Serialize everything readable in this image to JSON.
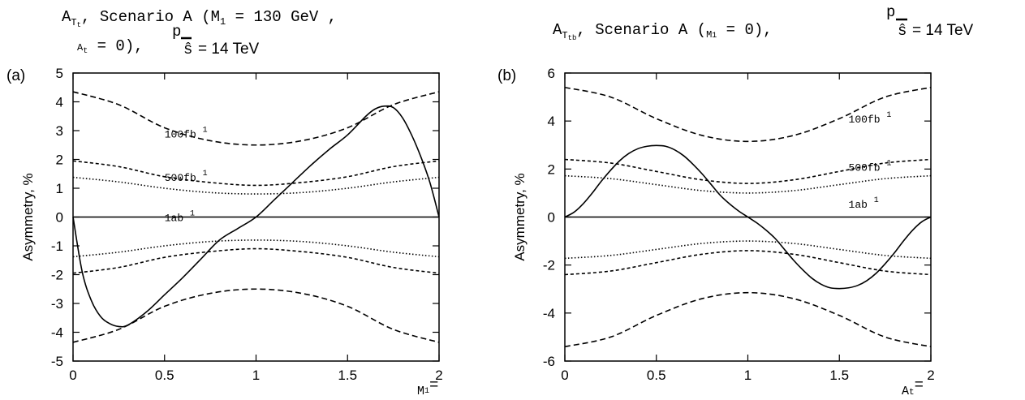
{
  "figure": {
    "panels": [
      {
        "tag": "(a)",
        "title_line1": "A",
        "title_sub1": "T",
        "title_subsub1": "t",
        "title_line1_rest": ", Scenario A (M",
        "title_m_sub": "1",
        "title_line1_tail": " = 130 GeV ,",
        "title_line2_a": "A",
        "title_line2_sub": "t",
        "title_line2_rest": " = 0),",
        "title_sqrt_p": "p",
        "title_sqrt_s": "ŝ",
        "title_energy": "= 14 TeV",
        "xaxis_name": "M",
        "xaxis_sub": "1",
        "xaxis_eq": "="
      },
      {
        "tag": "(b)",
        "title_line1": "A",
        "title_sub1": "T",
        "title_subsub1": "tb",
        "title_line1_rest": ", Scenario A (",
        "title_m_label": "M",
        "title_m_sub": "1",
        "title_line1_tail": " = 0),",
        "title_sqrt_p": "p",
        "title_sqrt_s": "ŝ",
        "title_energy": "= 14 TeV",
        "xaxis_name": "A",
        "xaxis_sub": "t",
        "xaxis_eq": "="
      }
    ]
  },
  "chart_data": [
    {
      "type": "line",
      "panel": "(a)",
      "ylabel": "Asymmetry, %",
      "xlim": [
        0,
        2
      ],
      "ylim": [
        -5,
        5
      ],
      "xticks": [
        "0",
        "0.5",
        "1",
        "1.5",
        "2"
      ],
      "yticks": [
        "-5",
        "-4",
        "-3",
        "-2",
        "-1",
        "0",
        "1",
        "2",
        "3",
        "4",
        "5"
      ],
      "xtick_values": [
        0,
        0.5,
        1,
        1.5,
        2
      ],
      "ytick_values": [
        -5,
        -4,
        -3,
        -2,
        -1,
        0,
        1,
        2,
        3,
        4,
        5
      ],
      "grid": false,
      "series": [
        {
          "style": "solid",
          "x": [
            0,
            0.05,
            0.1,
            0.15,
            0.2,
            0.25,
            0.3,
            0.4,
            0.5,
            0.6,
            0.7,
            0.8,
            0.9,
            1.0,
            1.1,
            1.2,
            1.3,
            1.4,
            1.5,
            1.6,
            1.65,
            1.7,
            1.75,
            1.8,
            1.85,
            1.9,
            1.95,
            2.0
          ],
          "y": [
            0,
            -1.9,
            -2.9,
            -3.45,
            -3.7,
            -3.8,
            -3.75,
            -3.3,
            -2.7,
            -2.1,
            -1.45,
            -0.8,
            -0.4,
            0.0,
            0.6,
            1.2,
            1.8,
            2.35,
            2.85,
            3.5,
            3.75,
            3.85,
            3.8,
            3.45,
            2.85,
            2.1,
            1.2,
            0
          ]
        },
        {
          "style": "dashed",
          "x": [
            0,
            0.25,
            0.5,
            0.75,
            1.0,
            1.25,
            1.5,
            1.75,
            2.0
          ],
          "y": [
            4.35,
            3.9,
            3.1,
            2.65,
            2.5,
            2.65,
            3.1,
            3.9,
            4.35
          ]
        },
        {
          "style": "dashed",
          "x": [
            0,
            0.25,
            0.5,
            0.75,
            1.0,
            1.25,
            1.5,
            1.75,
            2.0
          ],
          "y": [
            -4.35,
            -3.9,
            -3.1,
            -2.65,
            -2.5,
            -2.65,
            -3.1,
            -3.9,
            -4.35
          ]
        },
        {
          "style": "short-dashed",
          "x": [
            0,
            0.25,
            0.5,
            0.75,
            1.0,
            1.25,
            1.5,
            1.75,
            2.0
          ],
          "y": [
            1.95,
            1.75,
            1.4,
            1.2,
            1.1,
            1.2,
            1.4,
            1.75,
            1.95
          ]
        },
        {
          "style": "short-dashed",
          "x": [
            0,
            0.25,
            0.5,
            0.75,
            1.0,
            1.25,
            1.5,
            1.75,
            2.0
          ],
          "y": [
            -1.95,
            -1.75,
            -1.4,
            -1.2,
            -1.1,
            -1.2,
            -1.4,
            -1.75,
            -1.95
          ]
        },
        {
          "style": "dotted",
          "x": [
            0,
            0.25,
            0.5,
            0.75,
            1.0,
            1.25,
            1.5,
            1.75,
            2.0
          ],
          "y": [
            1.38,
            1.22,
            1.0,
            0.85,
            0.8,
            0.85,
            1.0,
            1.22,
            1.38
          ]
        },
        {
          "style": "dotted",
          "x": [
            0,
            0.25,
            0.5,
            0.75,
            1.0,
            1.25,
            1.5,
            1.75,
            2.0
          ],
          "y": [
            -1.38,
            -1.22,
            -1.0,
            -0.85,
            -0.8,
            -0.85,
            -1.0,
            -1.22,
            -1.38
          ]
        },
        {
          "style": "zero",
          "x": [
            0,
            2
          ],
          "y": [
            0,
            0
          ]
        }
      ],
      "annotations": [
        {
          "text": "100fb",
          "sup": "1",
          "x": 0.5,
          "y": 2.9
        },
        {
          "text": "500fb",
          "sup": "1",
          "x": 0.5,
          "y": 1.4
        },
        {
          "text": "1ab",
          "sup": "1",
          "x": 0.5,
          "y": 0.0
        }
      ]
    },
    {
      "type": "line",
      "panel": "(b)",
      "ylabel": "Asymmetry, %",
      "xlim": [
        0,
        2
      ],
      "ylim": [
        -6,
        6
      ],
      "xticks": [
        "0",
        "0.5",
        "1",
        "1.5",
        "2"
      ],
      "yticks": [
        "-6",
        "-4",
        "-2",
        "0",
        "2",
        "4",
        "6"
      ],
      "xtick_values": [
        0,
        0.5,
        1,
        1.5,
        2
      ],
      "ytick_values": [
        -6,
        -4,
        -2,
        0,
        2,
        4,
        6
      ],
      "grid": false,
      "series": [
        {
          "style": "solid",
          "x": [
            0,
            0.05,
            0.1,
            0.15,
            0.2,
            0.25,
            0.3,
            0.35,
            0.4,
            0.45,
            0.5,
            0.55,
            0.6,
            0.65,
            0.7,
            0.75,
            0.8,
            0.85,
            0.9,
            0.95,
            1.0,
            1.05,
            1.1,
            1.15,
            1.2,
            1.25,
            1.3,
            1.35,
            1.4,
            1.45,
            1.5,
            1.55,
            1.6,
            1.65,
            1.7,
            1.75,
            1.8,
            1.85,
            1.9,
            1.95,
            2.0
          ],
          "y": [
            0,
            0.2,
            0.55,
            1.0,
            1.5,
            1.95,
            2.35,
            2.65,
            2.85,
            2.95,
            2.98,
            2.95,
            2.8,
            2.55,
            2.2,
            1.8,
            1.35,
            0.9,
            0.55,
            0.25,
            0,
            -0.25,
            -0.55,
            -0.9,
            -1.35,
            -1.8,
            -2.2,
            -2.55,
            -2.8,
            -2.95,
            -2.98,
            -2.95,
            -2.85,
            -2.65,
            -2.35,
            -1.95,
            -1.5,
            -1.0,
            -0.55,
            -0.2,
            0
          ]
        },
        {
          "style": "dashed",
          "x": [
            0,
            0.25,
            0.5,
            0.75,
            1.0,
            1.25,
            1.5,
            1.75,
            2.0
          ],
          "y": [
            5.4,
            5.0,
            4.1,
            3.4,
            3.15,
            3.4,
            4.1,
            5.0,
            5.4
          ]
        },
        {
          "style": "dashed",
          "x": [
            0,
            0.25,
            0.5,
            0.75,
            1.0,
            1.25,
            1.5,
            1.75,
            2.0
          ],
          "y": [
            -5.4,
            -5.0,
            -4.1,
            -3.4,
            -3.15,
            -3.4,
            -4.1,
            -5.0,
            -5.4
          ]
        },
        {
          "style": "short-dashed",
          "x": [
            0,
            0.25,
            0.5,
            0.75,
            1.0,
            1.25,
            1.5,
            1.75,
            2.0
          ],
          "y": [
            2.4,
            2.25,
            1.9,
            1.55,
            1.4,
            1.55,
            1.9,
            2.25,
            2.4
          ]
        },
        {
          "style": "short-dashed",
          "x": [
            0,
            0.25,
            0.5,
            0.75,
            1.0,
            1.25,
            1.5,
            1.75,
            2.0
          ],
          "y": [
            -2.4,
            -2.25,
            -1.9,
            -1.55,
            -1.4,
            -1.55,
            -1.9,
            -2.25,
            -2.4
          ]
        },
        {
          "style": "dotted",
          "x": [
            0,
            0.25,
            0.5,
            0.75,
            1.0,
            1.25,
            1.5,
            1.75,
            2.0
          ],
          "y": [
            1.72,
            1.6,
            1.35,
            1.1,
            1.0,
            1.1,
            1.35,
            1.6,
            1.72
          ]
        },
        {
          "style": "dotted",
          "x": [
            0,
            0.25,
            0.5,
            0.75,
            1.0,
            1.25,
            1.5,
            1.75,
            2.0
          ],
          "y": [
            -1.72,
            -1.6,
            -1.35,
            -1.1,
            -1.0,
            -1.1,
            -1.35,
            -1.6,
            -1.72
          ]
        },
        {
          "style": "zero",
          "x": [
            0,
            2
          ],
          "y": [
            0,
            0
          ]
        }
      ],
      "annotations": [
        {
          "text": "100fb",
          "sup": "1",
          "x": 1.55,
          "y": 4.1
        },
        {
          "text": "500fb",
          "sup": "1",
          "x": 1.55,
          "y": 2.1
        },
        {
          "text": "1ab",
          "sup": "1",
          "x": 1.55,
          "y": 0.55
        }
      ]
    }
  ]
}
